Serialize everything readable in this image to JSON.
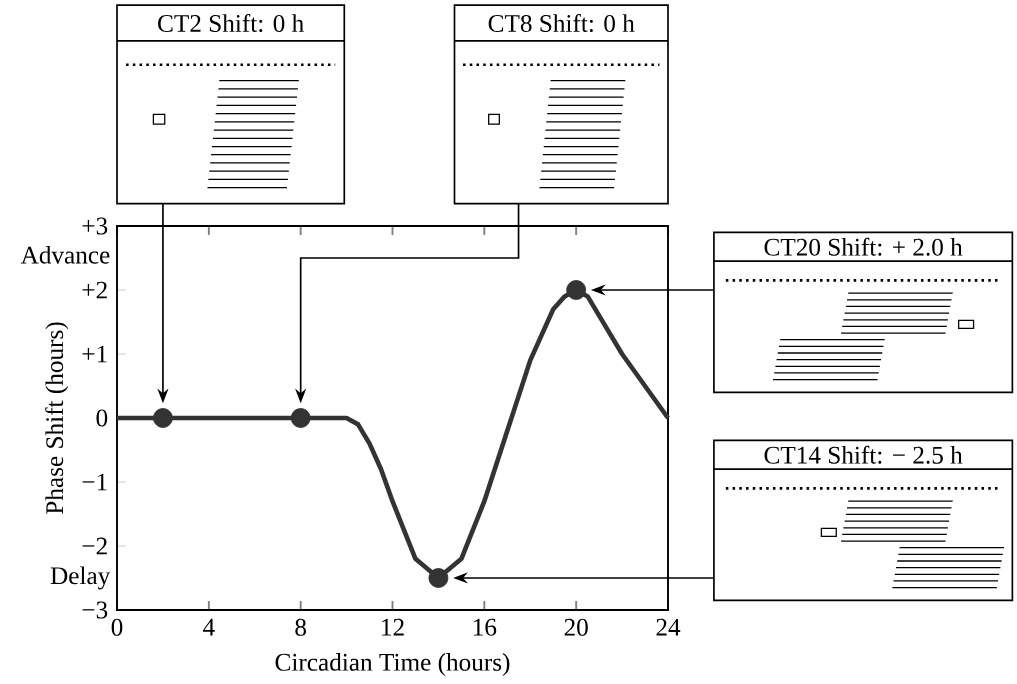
{
  "chart_data": {
    "type": "line",
    "xlabel": "Circadian Time (hours)",
    "ylabel": "Phase Shift (hours)",
    "xlim": [
      0,
      24
    ],
    "xticks": [
      0,
      4,
      8,
      12,
      16,
      20,
      24
    ],
    "ylim": [
      -3,
      3
    ],
    "yticks": [
      {
        "value": -3,
        "label": "−3"
      },
      {
        "value": -2,
        "label": "−2"
      },
      {
        "value": -1,
        "label": "−1"
      },
      {
        "value": 0,
        "label": "0"
      },
      {
        "value": 1,
        "label": "+1"
      },
      {
        "value": 2,
        "label": "+2"
      },
      {
        "value": 3,
        "label": "+3"
      }
    ],
    "series": [
      {
        "marker": "none",
        "color": "#333333",
        "x": [
          0,
          10,
          10.5,
          11,
          11.5,
          12,
          13,
          14,
          15,
          16,
          17,
          18,
          19,
          19.5,
          20,
          20.5,
          21,
          22,
          23,
          24
        ],
        "values": [
          0,
          0,
          -0.1,
          -0.4,
          -0.8,
          -1.3,
          -2.2,
          -2.5,
          -2.2,
          -1.3,
          -0.2,
          0.9,
          1.7,
          1.9,
          2.0,
          1.9,
          1.6,
          1.0,
          0.5,
          0
        ]
      },
      {
        "type": "scatter",
        "marker": "circle",
        "color": "#333333",
        "x": [
          2,
          8,
          14,
          20
        ],
        "values": [
          0,
          0,
          -2.5,
          2
        ]
      }
    ],
    "annotations": [
      "CT2 Shift: 0 h",
      "CT8 Shift: 0 h",
      "CT20 Shift: + 2.0 h",
      "CT14 Shift: − 2.5 h",
      "Advance",
      "Delay"
    ]
  }
}
